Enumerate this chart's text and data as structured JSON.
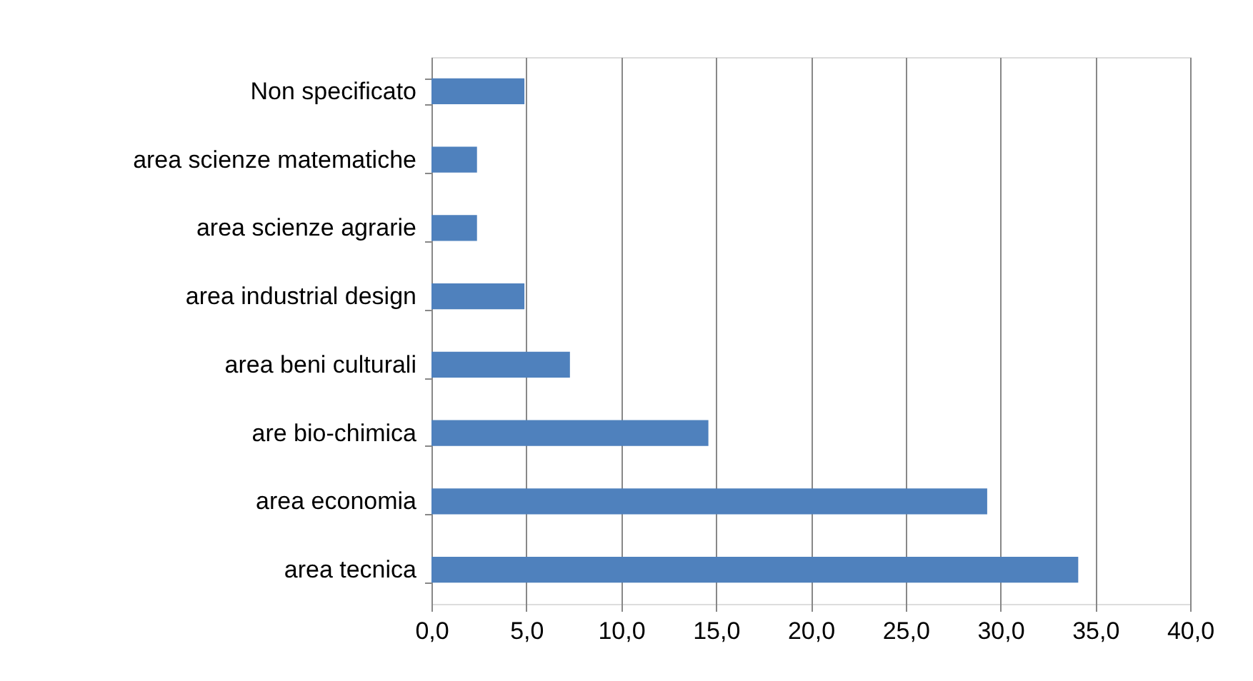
{
  "chart_data": {
    "type": "bar",
    "orientation": "horizontal",
    "categories": [
      "Non specificato",
      "area scienze matematiche",
      "area scienze agrarie",
      "area industrial design",
      "area beni culturali",
      "are bio-chimica",
      "area economia",
      "area tecnica"
    ],
    "values": [
      4.9,
      2.4,
      2.4,
      4.9,
      7.3,
      14.6,
      29.3,
      34.1
    ],
    "color": "#4f81bd",
    "xlim": [
      0,
      40
    ],
    "xticks": [
      {
        "value": 0,
        "label": "0,0"
      },
      {
        "value": 5,
        "label": "5,0"
      },
      {
        "value": 10,
        "label": "10,0"
      },
      {
        "value": 15,
        "label": "15,0"
      },
      {
        "value": 20,
        "label": "20,0"
      },
      {
        "value": 25,
        "label": "25,0"
      },
      {
        "value": 30,
        "label": "30,0"
      },
      {
        "value": 35,
        "label": "35,0"
      },
      {
        "value": 40,
        "label": "40,0"
      }
    ],
    "grid": "x"
  }
}
